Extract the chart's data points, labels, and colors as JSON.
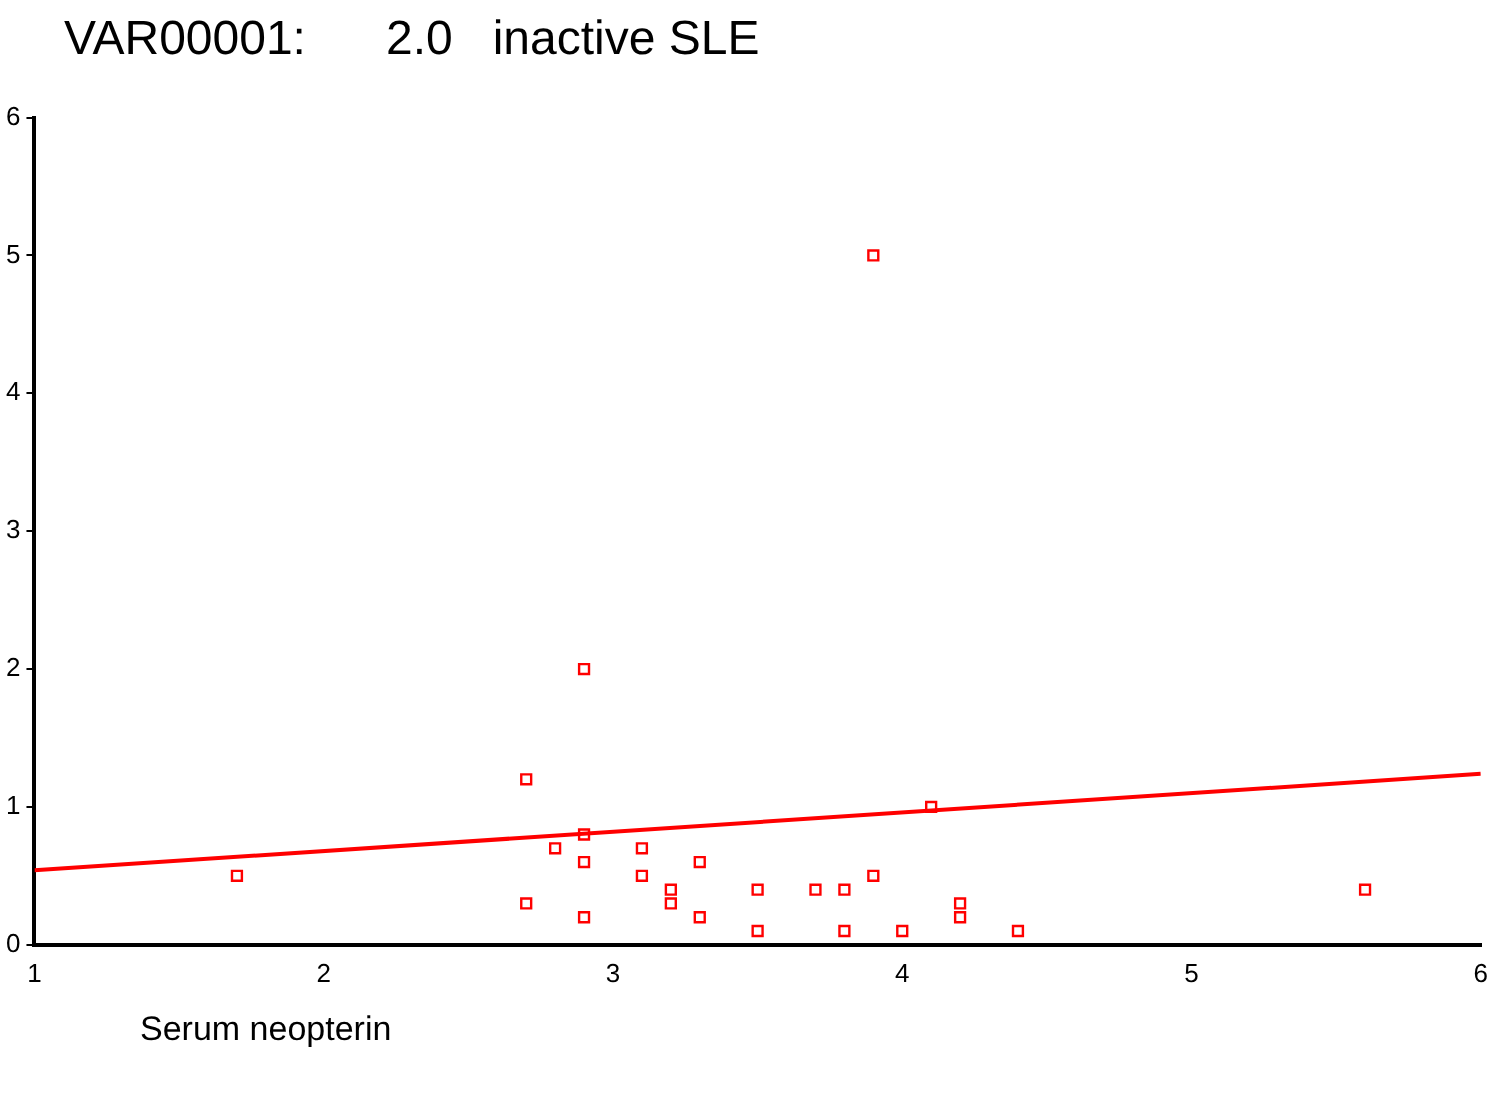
{
  "chart_data": {
    "type": "scatter",
    "title": "VAR00001:      2.0   inactive SLE",
    "xlabel": "Serum neopterin",
    "xlim": [
      1,
      6
    ],
    "xticks": [
      1,
      2,
      3,
      4,
      5,
      6
    ],
    "ylim": [
      0,
      6
    ],
    "yticks": [
      0,
      1,
      2,
      3,
      4,
      5,
      6
    ],
    "grid": false,
    "legend": false,
    "series": [
      {
        "marker": "square",
        "color": "#ff0000",
        "x": [
          1.7,
          2.7,
          2.7,
          2.8,
          2.9,
          2.9,
          2.9,
          2.9,
          3.1,
          3.1,
          3.2,
          3.2,
          3.3,
          3.3,
          3.5,
          3.5,
          3.7,
          3.8,
          3.8,
          3.9,
          3.9,
          4.0,
          4.1,
          4.2,
          4.2,
          4.4,
          5.6
        ],
        "values": [
          0.5,
          1.2,
          0.3,
          0.7,
          2.0,
          0.8,
          0.6,
          0.2,
          0.7,
          0.5,
          0.4,
          0.3,
          0.6,
          0.2,
          0.4,
          0.1,
          0.4,
          0.4,
          0.1,
          5.0,
          0.5,
          0.1,
          1.0,
          0.3,
          0.2,
          0.1,
          0.4
        ]
      },
      {
        "type": "line",
        "marker": "none",
        "color": "#ff0000",
        "x": [
          1,
          6
        ],
        "values": [
          0.54,
          1.24
        ]
      }
    ]
  }
}
